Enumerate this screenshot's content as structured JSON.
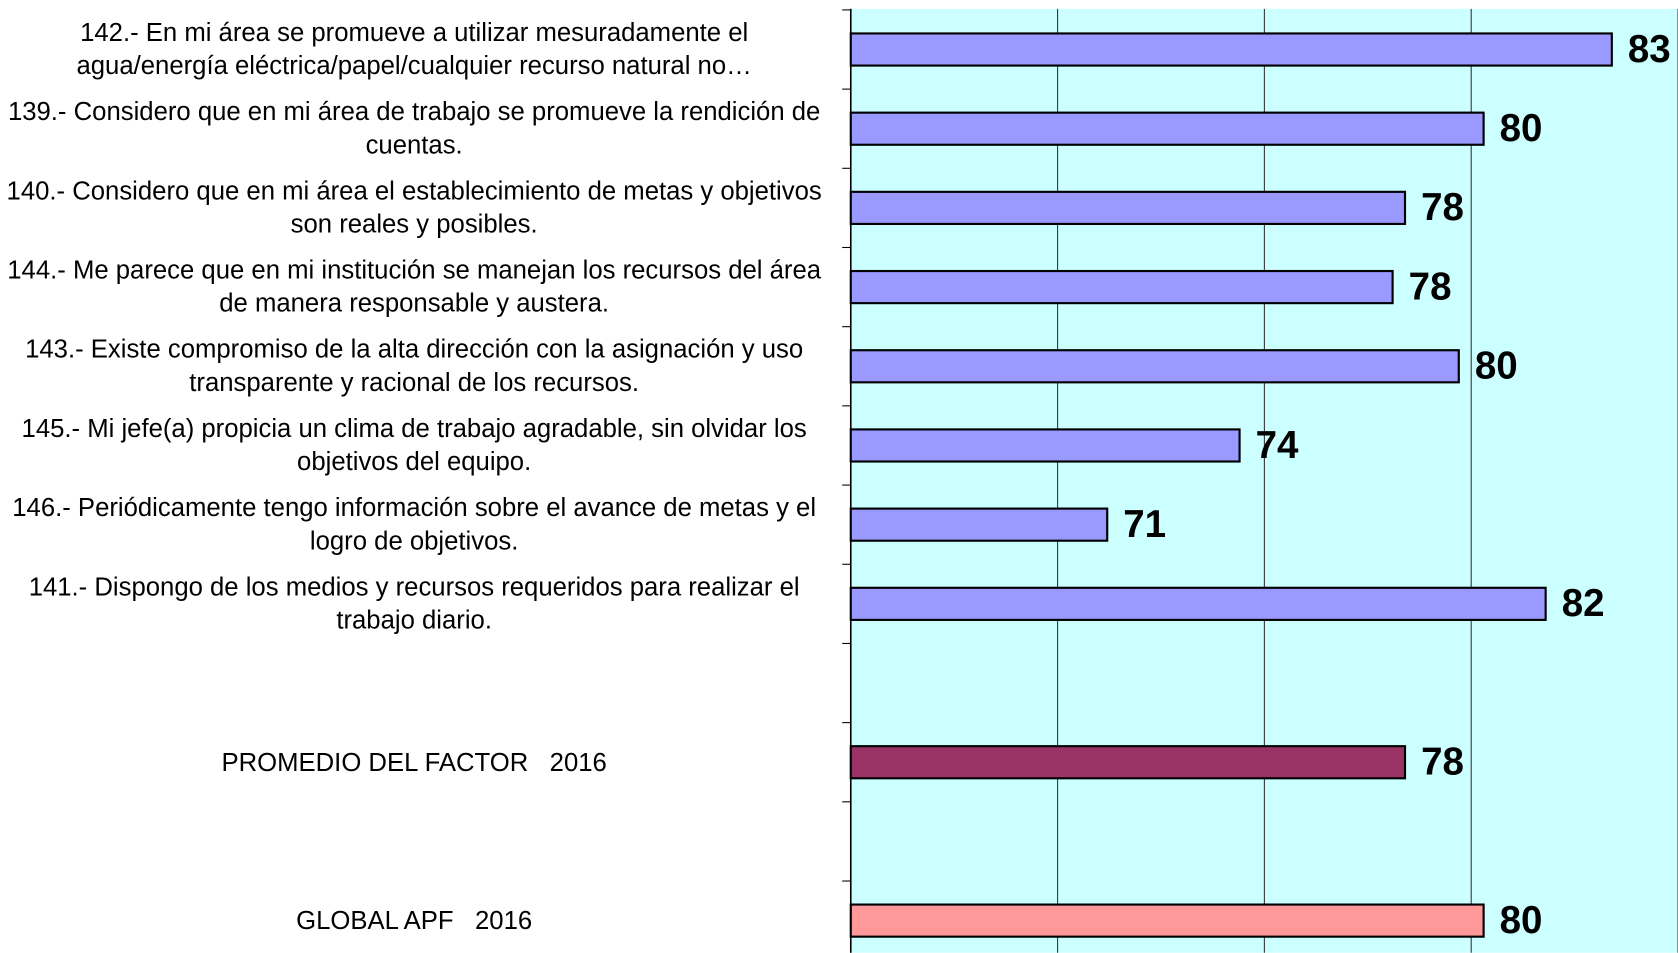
{
  "chart_data": {
    "type": "bar",
    "orientation": "horizontal",
    "categories": [
      "142.- En mi área se promueve a utilizar mesuradamente el agua/energía eléctrica/papel/cualquier recurso natural no…",
      "139.- Considero que en mi área de trabajo se promueve la rendición de cuentas.",
      "140.- Considero que en mi área el establecimiento de metas y objetivos son reales y posibles.",
      "144.- Me parece que en mi institución se manejan los recursos del área de manera responsable y austera.",
      "143.- Existe compromiso de la alta dirección con la asignación y uso transparente y racional de los recursos.",
      "145.- Mi jefe(a) propicia un clima de trabajo agradable, sin olvidar los objetivos del equipo.",
      "146.- Periódicamente tengo información sobre el avance de metas y el logro de objetivos.",
      "141.- Dispongo de los medios y recursos requeridos para realizar el trabajo diario.",
      null,
      "PROMEDIO DEL FACTOR   2016",
      null,
      "GLOBAL APF   2016"
    ],
    "values": [
      83.4,
      80.3,
      78.4,
      78.1,
      79.7,
      74.4,
      71.2,
      81.8,
      null,
      78.4,
      null,
      80.3
    ],
    "value_labels": [
      "83",
      "80",
      "78",
      "78",
      "80",
      "74",
      "71",
      "82",
      null,
      "78",
      null,
      "80"
    ],
    "colors": [
      "#9999ff",
      "#9999ff",
      "#9999ff",
      "#9999ff",
      "#9999ff",
      "#9999ff",
      "#9999ff",
      "#9999ff",
      null,
      "#993366",
      null,
      "#ff9999"
    ],
    "xlim": [
      65,
      85
    ],
    "xticks": [
      65,
      70,
      75,
      80,
      85
    ],
    "grid": true,
    "background": "#ccffff"
  }
}
